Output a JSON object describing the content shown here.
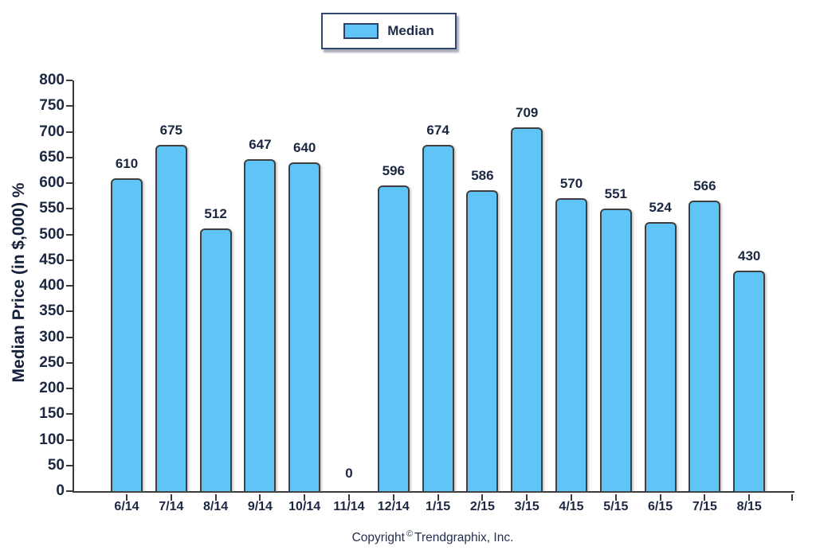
{
  "page": {
    "background": "#FFFFFF"
  },
  "legend": {
    "label": "Median"
  },
  "y_axis": {
    "title": "Median Price (in $,000) %",
    "ticks": [
      800,
      750,
      700,
      650,
      600,
      550,
      500,
      450,
      400,
      350,
      300,
      250,
      200,
      150,
      100,
      50,
      0
    ]
  },
  "footer": {
    "prefix": "Copyright",
    "symbol": "©",
    "suffix": "Trendgraphix, Inc."
  },
  "chart_data": {
    "type": "bar",
    "title": "",
    "categories": [
      "6/14",
      "7/14",
      "8/14",
      "9/14",
      "10/14",
      "11/14",
      "12/14",
      "1/15",
      "2/15",
      "3/15",
      "4/15",
      "5/15",
      "6/15",
      "7/15",
      "8/15"
    ],
    "series": [
      {
        "name": "Median",
        "values": [
          610,
          675,
          512,
          647,
          640,
          0,
          596,
          674,
          586,
          709,
          570,
          551,
          524,
          566,
          430
        ]
      }
    ],
    "data_labels": [
      610,
      675,
      512,
      647,
      640,
      0,
      596,
      674,
      586,
      709,
      570,
      551,
      524,
      566,
      430
    ],
    "xlabel": "",
    "ylabel": "Median Price (in $,000) %",
    "ylim": [
      0,
      800
    ],
    "ytick_step": 50,
    "grid": false,
    "legend_position": "top-center",
    "colors": {
      "bar_fill": "#5FC5F7",
      "bar_border": "#3F3F3F",
      "axis": "#3A3A3A",
      "text": "#1C2741",
      "legend_border": "#32456F"
    }
  }
}
